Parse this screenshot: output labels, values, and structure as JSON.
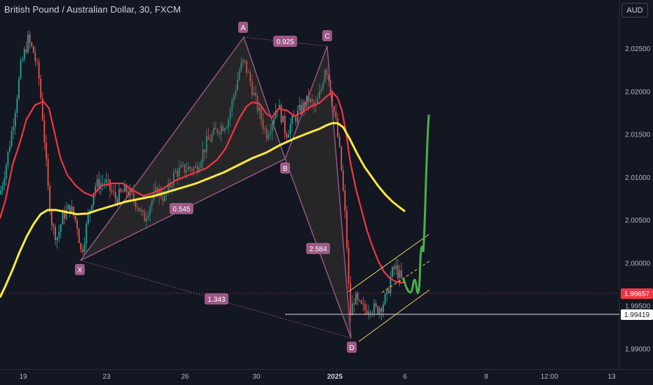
{
  "header": {
    "title": "British Pound / Australian Dollar, 30, FXCM",
    "currency_button": "AUD"
  },
  "chart_data": {
    "type": "candlestick",
    "x_labels": [
      "19",
      "23",
      "26",
      "30",
      "2025",
      "6",
      "8",
      "12:00",
      "13"
    ],
    "y_ticks": [
      "2.02500",
      "2.02000",
      "2.01500",
      "2.01000",
      "2.00500",
      "2.00000",
      "1.99500",
      "1.99000"
    ],
    "ylim": [
      1.9875,
      2.031
    ],
    "current_price": "1.99657",
    "level_price": "1.99419",
    "pattern_points": [
      {
        "label": "X",
        "price": 2.0004
      },
      {
        "label": "A",
        "price": 2.0265
      },
      {
        "label": "B",
        "price": 2.012
      },
      {
        "label": "C",
        "price": 2.0255
      },
      {
        "label": "D",
        "price": 1.9918
      }
    ],
    "ratios": [
      "0.545",
      "0.925",
      "2.584",
      "1.343"
    ],
    "colors": {
      "background": "#131722",
      "bull": "#26a69a",
      "bear": "#ef5350",
      "ma_fast": "#f23645",
      "ma_slow": "#ffeb3b",
      "pattern": "#9c5a86",
      "projection": "#4caf50",
      "channel": "#f2d15c",
      "price_tag": "#f23645"
    }
  }
}
